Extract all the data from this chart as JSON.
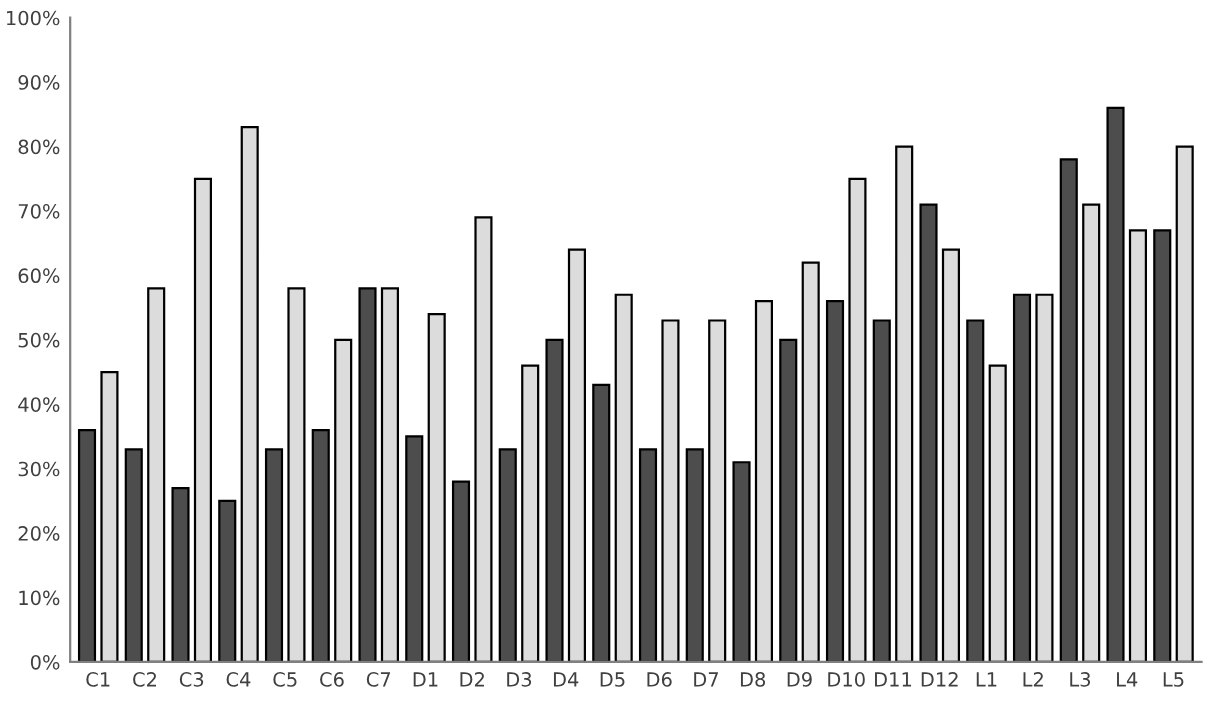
{
  "chart_data": {
    "type": "bar",
    "categories": [
      "C1",
      "C2",
      "C3",
      "C4",
      "C5",
      "C6",
      "C7",
      "D1",
      "D2",
      "D3",
      "D4",
      "D5",
      "D6",
      "D7",
      "D8",
      "D9",
      "D10",
      "D11",
      "D12",
      "L1",
      "L2",
      "L3",
      "L4",
      "L5"
    ],
    "series": [
      {
        "color": "#4d4d4d",
        "values": [
          36,
          33,
          27,
          25,
          33,
          36,
          58,
          35,
          28,
          33,
          50,
          43,
          33,
          33,
          31,
          50,
          56,
          53,
          71,
          53,
          57,
          78,
          86,
          67
        ]
      },
      {
        "color": "#dcdcdc",
        "values": [
          45,
          58,
          75,
          83,
          58,
          50,
          58,
          54,
          69,
          46,
          64,
          57,
          53,
          53,
          56,
          62,
          75,
          80,
          64,
          46,
          57,
          71,
          67,
          80
        ]
      }
    ],
    "ylim": [
      0,
      100
    ],
    "yticks": [
      {
        "value": 0,
        "label": "0%"
      },
      {
        "value": 10,
        "label": "10%"
      },
      {
        "value": 20,
        "label": "20%"
      },
      {
        "value": 30,
        "label": "30%"
      },
      {
        "value": 40,
        "label": "40%"
      },
      {
        "value": 50,
        "label": "50%"
      },
      {
        "value": 60,
        "label": "60%"
      },
      {
        "value": 70,
        "label": "70%"
      },
      {
        "value": 80,
        "label": "80%"
      },
      {
        "value": 90,
        "label": "90%"
      },
      {
        "value": 100,
        "label": "100%"
      }
    ],
    "grid": false
  }
}
